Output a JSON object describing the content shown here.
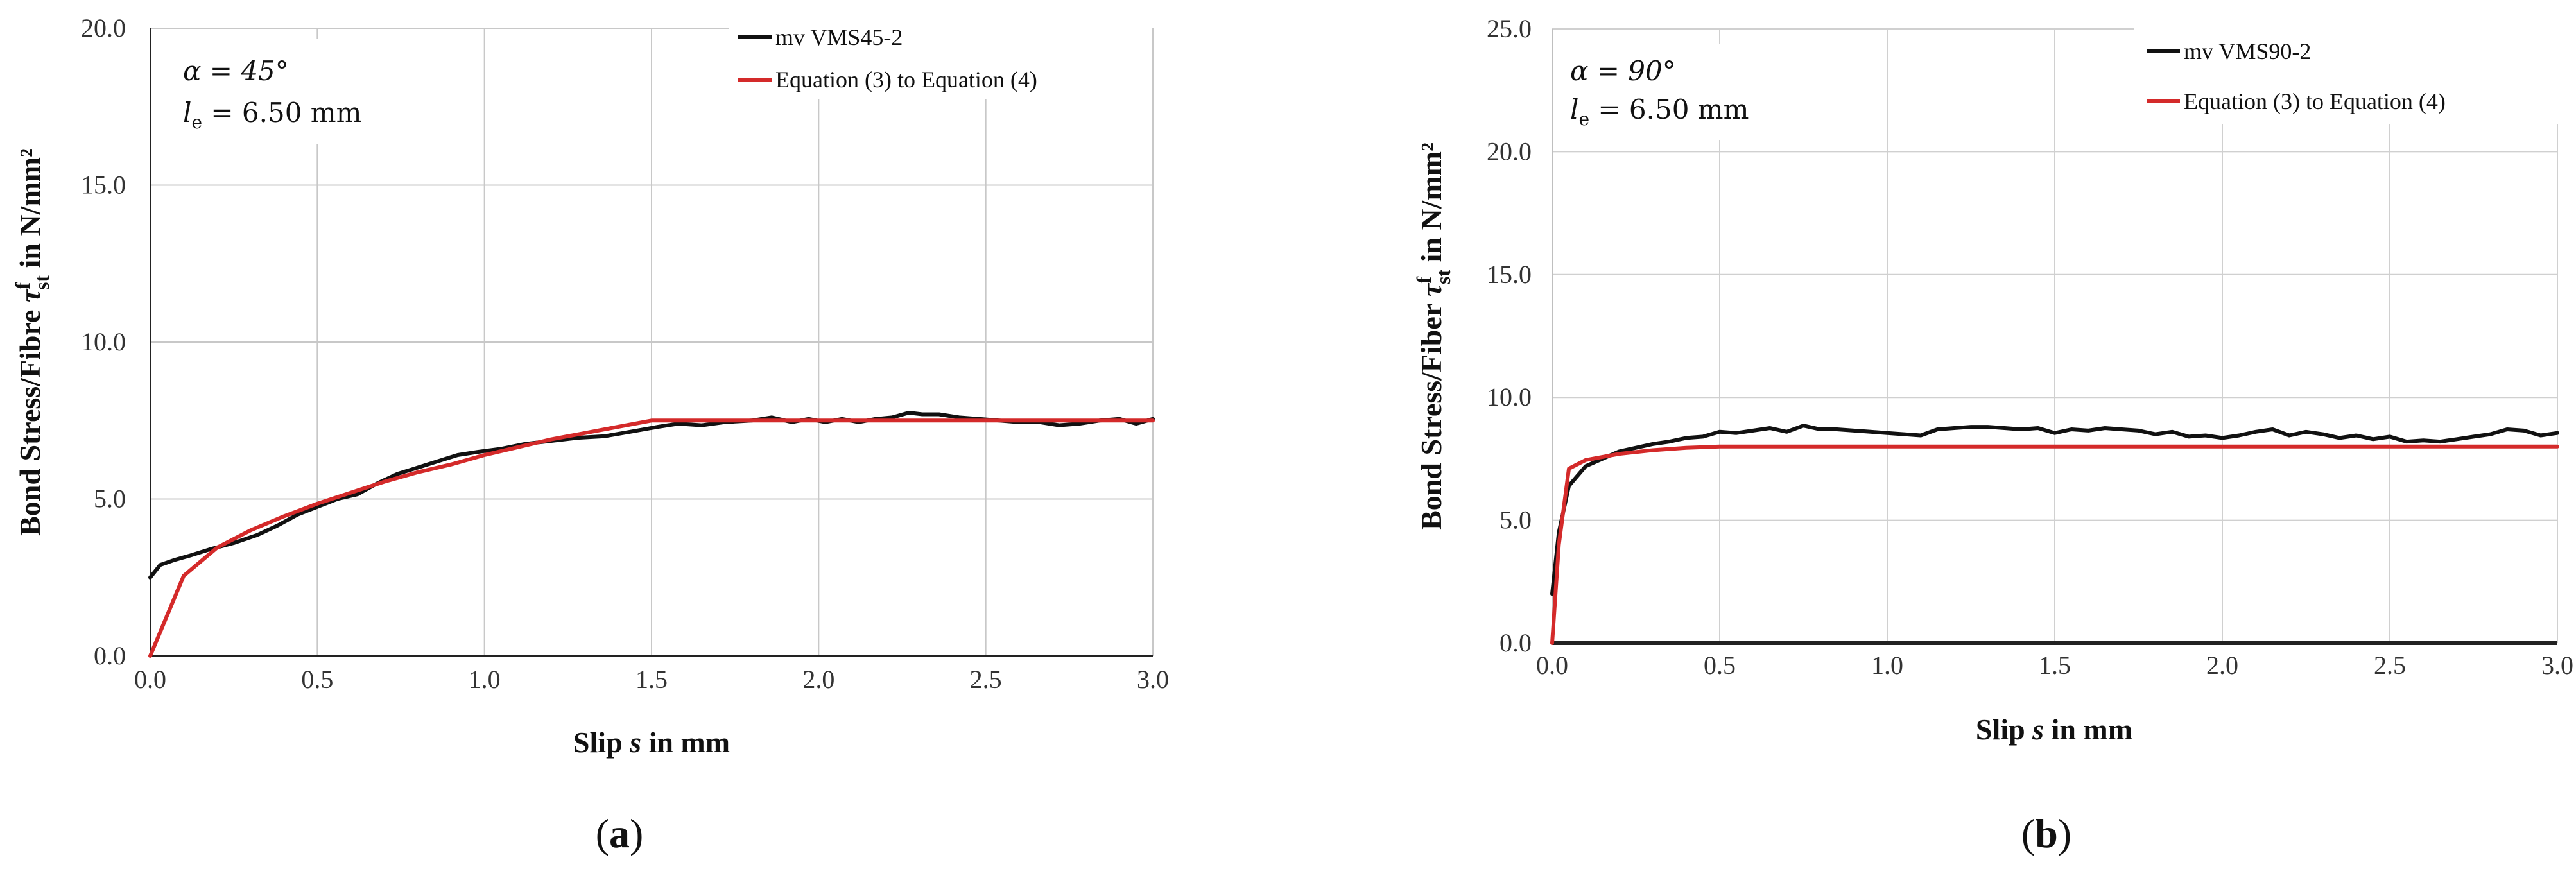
{
  "chart_data": [
    {
      "type": "line",
      "panel_label": "(a)",
      "panel_letter": "a",
      "xlabel": "Slip s in mm",
      "xlabel_pre": "Slip ",
      "xlabel_var": "s",
      "xlabel_post": " in mm",
      "ylabel": "Bond Stress/Fibre τfst in N/mm²",
      "ylabel_pre": "Bond Stress/Fibre ",
      "ylabel_sym": "τ",
      "ylabel_sup": "f",
      "ylabel_sub": "st",
      "ylabel_post": " in N/mm²",
      "xlim": [
        0,
        3.0
      ],
      "ylim": [
        0,
        20.0
      ],
      "xticks": [
        "0.0",
        "0.5",
        "1.0",
        "1.5",
        "2.0",
        "2.5",
        "3.0"
      ],
      "yticks": [
        "0.0",
        "5.0",
        "10.0",
        "15.0",
        "20.0"
      ],
      "annotation_alpha": "α = 45°",
      "annotation_le_sym": "l",
      "annotation_le_sub": "e",
      "annotation_le_val": " = 6.50 mm",
      "legend_position": "top-right",
      "series": [
        {
          "name": "mv VMS45-2",
          "color": "#111111",
          "x": [
            0,
            0.03,
            0.07,
            0.12,
            0.18,
            0.25,
            0.32,
            0.38,
            0.44,
            0.5,
            0.56,
            0.62,
            0.68,
            0.74,
            0.8,
            0.86,
            0.92,
            0.98,
            1.05,
            1.12,
            1.2,
            1.28,
            1.36,
            1.44,
            1.52,
            1.58,
            1.65,
            1.72,
            1.8,
            1.86,
            1.92,
            1.97,
            2.02,
            2.07,
            2.12,
            2.17,
            2.22,
            2.27,
            2.31,
            2.36,
            2.42,
            2.48,
            2.54,
            2.6,
            2.66,
            2.72,
            2.78,
            2.84,
            2.9,
            2.95,
            3.0
          ],
          "y": [
            2.5,
            2.9,
            3.05,
            3.2,
            3.4,
            3.6,
            3.85,
            4.15,
            4.5,
            4.75,
            5.0,
            5.15,
            5.5,
            5.8,
            6.0,
            6.2,
            6.4,
            6.5,
            6.6,
            6.75,
            6.85,
            6.95,
            7.0,
            7.15,
            7.3,
            7.4,
            7.35,
            7.45,
            7.5,
            7.6,
            7.45,
            7.55,
            7.45,
            7.55,
            7.45,
            7.55,
            7.6,
            7.75,
            7.7,
            7.7,
            7.6,
            7.55,
            7.5,
            7.45,
            7.45,
            7.35,
            7.4,
            7.5,
            7.55,
            7.4,
            7.55
          ]
        },
        {
          "name": "Equation (3) to Equation (4)",
          "color": "#d42a2a",
          "x": [
            0,
            0.1,
            0.2,
            0.3,
            0.4,
            0.5,
            0.6,
            0.7,
            0.8,
            0.9,
            1.0,
            1.1,
            1.2,
            1.3,
            1.4,
            1.5,
            1.6,
            2.0,
            2.5,
            3.0
          ],
          "y": [
            0,
            2.55,
            3.45,
            4.0,
            4.45,
            4.85,
            5.2,
            5.55,
            5.85,
            6.1,
            6.4,
            6.65,
            6.9,
            7.1,
            7.3,
            7.5,
            7.5,
            7.5,
            7.5,
            7.5
          ]
        }
      ]
    },
    {
      "type": "line",
      "panel_label": "(b)",
      "panel_letter": "b",
      "xlabel": "Slip s in mm",
      "xlabel_pre": "Slip ",
      "xlabel_var": "s",
      "xlabel_post": " in mm",
      "ylabel": "Bond Stress/Fiber τfst in N/mm²",
      "ylabel_pre": "Bond Stress/Fiber ",
      "ylabel_sym": "τ",
      "ylabel_sup": "f",
      "ylabel_sub": "st",
      "ylabel_post": " in N/mm²",
      "xlim": [
        0,
        3.0
      ],
      "ylim": [
        0,
        25.0
      ],
      "xticks": [
        "0.0",
        "0.5",
        "1.0",
        "1.5",
        "2.0",
        "2.5",
        "3.0"
      ],
      "yticks": [
        "0.0",
        "5.0",
        "10.0",
        "15.0",
        "20.0",
        "25.0"
      ],
      "annotation_alpha": "α = 90°",
      "annotation_le_sym": "l",
      "annotation_le_sub": "e",
      "annotation_le_val": " = 6.50 mm",
      "legend_position": "top-right",
      "series": [
        {
          "name": "mv VMS90-2",
          "color": "#111111",
          "x": [
            0,
            0.02,
            0.05,
            0.1,
            0.15,
            0.2,
            0.25,
            0.3,
            0.35,
            0.4,
            0.45,
            0.5,
            0.55,
            0.6,
            0.65,
            0.7,
            0.75,
            0.8,
            0.85,
            0.9,
            0.95,
            1.0,
            1.05,
            1.1,
            1.15,
            1.2,
            1.25,
            1.3,
            1.35,
            1.4,
            1.45,
            1.5,
            1.55,
            1.6,
            1.65,
            1.7,
            1.75,
            1.8,
            1.85,
            1.9,
            1.95,
            2.0,
            2.05,
            2.1,
            2.15,
            2.2,
            2.25,
            2.3,
            2.35,
            2.4,
            2.45,
            2.5,
            2.55,
            2.6,
            2.65,
            2.7,
            2.75,
            2.8,
            2.85,
            2.9,
            2.95,
            3.0
          ],
          "y": [
            2.0,
            4.5,
            6.4,
            7.2,
            7.5,
            7.8,
            7.95,
            8.1,
            8.2,
            8.35,
            8.4,
            8.6,
            8.55,
            8.65,
            8.75,
            8.6,
            8.85,
            8.7,
            8.7,
            8.65,
            8.6,
            8.55,
            8.5,
            8.45,
            8.7,
            8.75,
            8.8,
            8.8,
            8.75,
            8.7,
            8.75,
            8.55,
            8.7,
            8.65,
            8.75,
            8.7,
            8.65,
            8.5,
            8.6,
            8.4,
            8.45,
            8.35,
            8.45,
            8.6,
            8.7,
            8.45,
            8.6,
            8.5,
            8.35,
            8.45,
            8.3,
            8.4,
            8.2,
            8.25,
            8.2,
            8.3,
            8.4,
            8.5,
            8.7,
            8.65,
            8.45,
            8.55
          ]
        },
        {
          "name": "Equation (3) to Equation (4)",
          "color": "#d42a2a",
          "x": [
            0,
            0.02,
            0.05,
            0.1,
            0.2,
            0.3,
            0.4,
            0.5,
            1.0,
            2.0,
            3.0
          ],
          "y": [
            0,
            4.0,
            7.1,
            7.45,
            7.7,
            7.85,
            7.95,
            8.0,
            8.0,
            8.0,
            8.0
          ]
        }
      ]
    }
  ]
}
